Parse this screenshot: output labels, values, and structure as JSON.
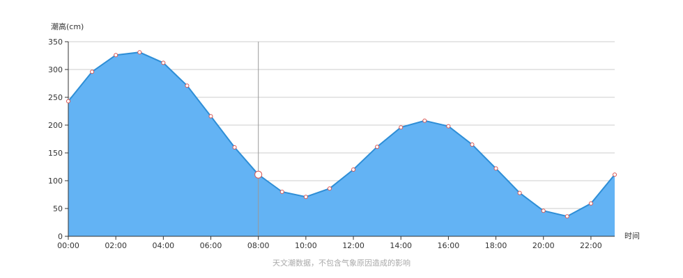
{
  "chart_data": {
    "type": "area",
    "title": "",
    "ylabel": "潮高(cm)",
    "xlabel": "时间",
    "caption": "天文潮数据，不包含气象原因造成的影响",
    "ylim": [
      0,
      350
    ],
    "yticks": [
      0,
      50,
      100,
      150,
      200,
      250,
      300,
      350
    ],
    "xlim": [
      0,
      23
    ],
    "xticks": [
      {
        "x": 0,
        "label": "00:00"
      },
      {
        "x": 2,
        "label": "02:00"
      },
      {
        "x": 4,
        "label": "04:00"
      },
      {
        "x": 6,
        "label": "06:00"
      },
      {
        "x": 8,
        "label": "08:00"
      },
      {
        "x": 10,
        "label": "10:00"
      },
      {
        "x": 12,
        "label": "12:00"
      },
      {
        "x": 14,
        "label": "14:00"
      },
      {
        "x": 16,
        "label": "16:00"
      },
      {
        "x": 18,
        "label": "18:00"
      },
      {
        "x": 20,
        "label": "20:00"
      },
      {
        "x": 22,
        "label": "22:00"
      }
    ],
    "grid": true,
    "series": [
      {
        "x": [
          0,
          1,
          2,
          3,
          4,
          5,
          6,
          7,
          8,
          9,
          10,
          11,
          12,
          13,
          14,
          15,
          16,
          17,
          18,
          19,
          20,
          21,
          22,
          23
        ],
        "values": [
          243,
          296,
          326,
          331,
          312,
          271,
          216,
          160,
          111,
          80,
          71,
          86,
          120,
          161,
          196,
          208,
          198,
          165,
          122,
          78,
          46,
          36,
          59,
          111
        ]
      }
    ],
    "highlight_x": 8,
    "colors": {
      "fill": "#63b3f4",
      "line": "#2e8ed6",
      "marker_stroke": "#d9534f",
      "grid": "#cccccc",
      "crosshair": "#999999"
    }
  }
}
